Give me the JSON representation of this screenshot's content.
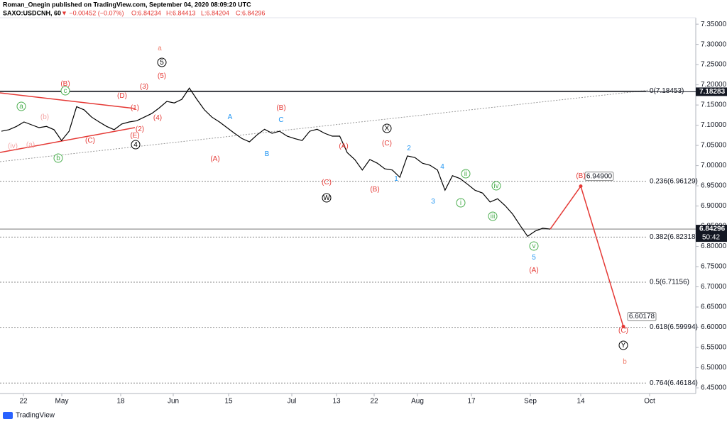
{
  "chart_data": {
    "type": "line",
    "header": "Roman_Onegin published on TradingView.com, September 04, 2020 08:09:20 UTC",
    "symbol": "SAXO:USDCNH, 60",
    "change": "▼ −0.00452 (−0.07%)",
    "ohlc": [
      "O:6.84234",
      "H:6.84413",
      "L:6.84204",
      "C:6.84296"
    ],
    "brand": "TradingView",
    "ylim": [
      6.436,
      7.366
    ],
    "yticks": [
      {
        "value": 7.35,
        "label": "7.35000"
      },
      {
        "value": 7.3,
        "label": "7.30000"
      },
      {
        "value": 7.25,
        "label": "7.25000"
      },
      {
        "value": 7.2,
        "label": "7.20000"
      },
      {
        "value": 7.15,
        "label": "7.15000"
      },
      {
        "value": 7.1,
        "label": "7.10000"
      },
      {
        "value": 7.05,
        "label": "7.05000"
      },
      {
        "value": 7.0,
        "label": "7.00000"
      },
      {
        "value": 6.95,
        "label": "6.95000"
      },
      {
        "value": 6.9,
        "label": "6.90000"
      },
      {
        "value": 6.85,
        "label": "6.85000"
      },
      {
        "value": 6.8,
        "label": "6.80000"
      },
      {
        "value": 6.75,
        "label": "6.75000"
      },
      {
        "value": 6.7,
        "label": "6.70000"
      },
      {
        "value": 6.65,
        "label": "6.65000"
      },
      {
        "value": 6.6,
        "label": "6.60000"
      },
      {
        "value": 6.55,
        "label": "6.55000"
      },
      {
        "value": 6.5,
        "label": "6.50000"
      },
      {
        "value": 6.45,
        "label": "6.45000"
      }
    ],
    "x_labels": [
      "22",
      "May",
      "18",
      "Jun",
      "15",
      "Jul",
      "13",
      "22",
      "Aug",
      "17",
      "Sep",
      "14",
      "Oct"
    ],
    "series": [
      {
        "name": "USDCNH",
        "color": "#000000",
        "values": [
          7.085,
          7.089,
          7.097,
          7.108,
          7.101,
          7.094,
          7.097,
          7.089,
          7.062,
          7.085,
          7.146,
          7.138,
          7.12,
          7.108,
          7.097,
          7.089,
          7.103,
          7.108,
          7.111,
          7.12,
          7.129,
          7.143,
          7.159,
          7.155,
          7.164,
          7.192,
          7.164,
          7.138,
          7.12,
          7.108,
          7.094,
          7.08,
          7.067,
          7.059,
          7.076,
          7.09,
          7.08,
          7.085,
          7.073,
          7.067,
          7.062,
          7.085,
          7.09,
          7.08,
          7.073,
          7.073,
          7.032,
          7.015,
          6.989,
          7.015,
          7.006,
          6.992,
          6.989,
          6.971,
          7.024,
          7.02,
          7.006,
          7.001,
          6.989,
          6.939,
          6.975,
          6.968,
          6.954,
          6.939,
          6.932,
          6.91,
          6.918,
          6.901,
          6.88,
          6.852,
          6.825,
          6.838,
          6.845,
          6.84296
        ]
      }
    ],
    "high_line": {
      "value": 7.18283,
      "label": "7.18283"
    },
    "last_price": {
      "value": 6.84296,
      "label": "6.84296"
    },
    "countdown": "50:42",
    "fib_levels": [
      {
        "value": 7.18453,
        "label": "0(7.18453)"
      },
      {
        "value": 6.96129,
        "label": "0.236(6.96129)"
      },
      {
        "value": 6.82318,
        "label": "0.382(6.82318)"
      },
      {
        "value": 6.71156,
        "label": "0.5(6.71156)"
      },
      {
        "value": 6.59994,
        "label": "0.618(6.59994)"
      },
      {
        "value": 6.46184,
        "label": "0.764(6.46184)"
      }
    ],
    "projection": [
      {
        "value": 6.949,
        "label": "6.94900"
      },
      {
        "value": 6.60178,
        "label": "6.60178"
      }
    ],
    "annotations": [
      {
        "text": "a",
        "color": "#f08070"
      },
      {
        "text": "5",
        "color": "#000000",
        "circled": true
      },
      {
        "text": "(5)",
        "color": "#e53935"
      },
      {
        "text": "(3)",
        "color": "#e53935"
      },
      {
        "text": "(D)",
        "color": "#e53935"
      },
      {
        "text": "(B)",
        "color": "#e53935"
      },
      {
        "text": "c",
        "color": "#4caf50",
        "circled": true
      },
      {
        "text": "a",
        "color": "#4caf50",
        "circled": true
      },
      {
        "text": "(b)",
        "color": "#f4a7a7"
      },
      {
        "text": "(1)",
        "color": "#e53935"
      },
      {
        "text": "(4)",
        "color": "#e53935"
      },
      {
        "text": "(2)",
        "color": "#e53935"
      },
      {
        "text": "(C)",
        "color": "#e53935"
      },
      {
        "text": "(E)",
        "color": "#e53935"
      },
      {
        "text": "4",
        "color": "#000000",
        "circled": true
      },
      {
        "text": "(a)",
        "color": "#f4a7a7"
      },
      {
        "text": "(iv)",
        "color": "#f4a7a7"
      },
      {
        "text": "b",
        "color": "#4caf50",
        "circled": true
      },
      {
        "text": "(A)",
        "color": "#e53935"
      },
      {
        "text": "A",
        "color": "#2196f3"
      },
      {
        "text": "B",
        "color": "#2196f3"
      },
      {
        "text": "C",
        "color": "#2196f3"
      },
      {
        "text": "(B)",
        "color": "#e53935"
      },
      {
        "text": "(C)",
        "color": "#e53935"
      },
      {
        "text": "W",
        "color": "#000000",
        "circled": true
      },
      {
        "text": "(A)",
        "color": "#e53935"
      },
      {
        "text": "X",
        "color": "#000000",
        "circled": true
      },
      {
        "text": "(C)",
        "color": "#e53935"
      },
      {
        "text": "2",
        "color": "#2196f3"
      },
      {
        "text": "(B)",
        "color": "#e53935"
      },
      {
        "text": "1",
        "color": "#2196f3"
      },
      {
        "text": "3",
        "color": "#2196f3"
      },
      {
        "text": "4",
        "color": "#2196f3"
      },
      {
        "text": "ii",
        "color": "#4caf50",
        "circled": true
      },
      {
        "text": "iv",
        "color": "#4caf50",
        "circled": true
      },
      {
        "text": "i",
        "color": "#4caf50",
        "circled": true
      },
      {
        "text": "iii",
        "color": "#4caf50",
        "circled": true
      },
      {
        "text": "v",
        "color": "#4caf50",
        "circled": true
      },
      {
        "text": "5",
        "color": "#2196f3"
      },
      {
        "text": "(A)",
        "color": "#e53935"
      },
      {
        "text": "(B)",
        "color": "#e53935"
      },
      {
        "text": "(C)",
        "color": "#e53935"
      },
      {
        "text": "Y",
        "color": "#000000",
        "circled": true
      },
      {
        "text": "b",
        "color": "#f08070"
      }
    ]
  }
}
